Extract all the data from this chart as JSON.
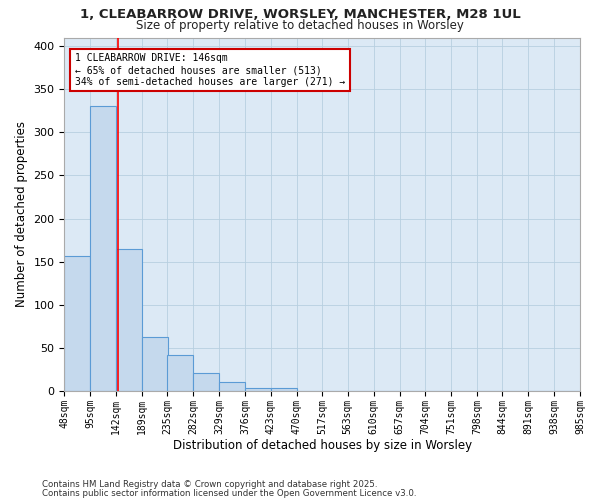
{
  "title1": "1, CLEABARROW DRIVE, WORSLEY, MANCHESTER, M28 1UL",
  "title2": "Size of property relative to detached houses in Worsley",
  "xlabel": "Distribution of detached houses by size in Worsley",
  "ylabel": "Number of detached properties",
  "bin_edges": [
    48,
    95,
    142,
    189,
    235,
    282,
    329,
    376,
    423,
    470,
    517,
    563,
    610,
    657,
    704,
    751,
    798,
    844,
    891,
    938,
    985
  ],
  "bar_heights": [
    157,
    330,
    165,
    63,
    42,
    21,
    10,
    4,
    3,
    0,
    0,
    0,
    0,
    0,
    0,
    0,
    0,
    0,
    0,
    0
  ],
  "bar_color": "#c5d9ed",
  "bar_edge_color": "#5b9bd5",
  "plot_bg_color": "#dce9f5",
  "fig_bg_color": "#ffffff",
  "grid_color": "#b8cfe0",
  "red_line_x": 146,
  "annotation_text": "1 CLEABARROW DRIVE: 146sqm\n← 65% of detached houses are smaller (513)\n34% of semi-detached houses are larger (271) →",
  "annotation_box_facecolor": "#ffffff",
  "annotation_box_edgecolor": "#cc0000",
  "footnote1": "Contains HM Land Registry data © Crown copyright and database right 2025.",
  "footnote2": "Contains public sector information licensed under the Open Government Licence v3.0.",
  "ylim": [
    0,
    410
  ],
  "yticks": [
    0,
    50,
    100,
    150,
    200,
    250,
    300,
    350,
    400
  ]
}
